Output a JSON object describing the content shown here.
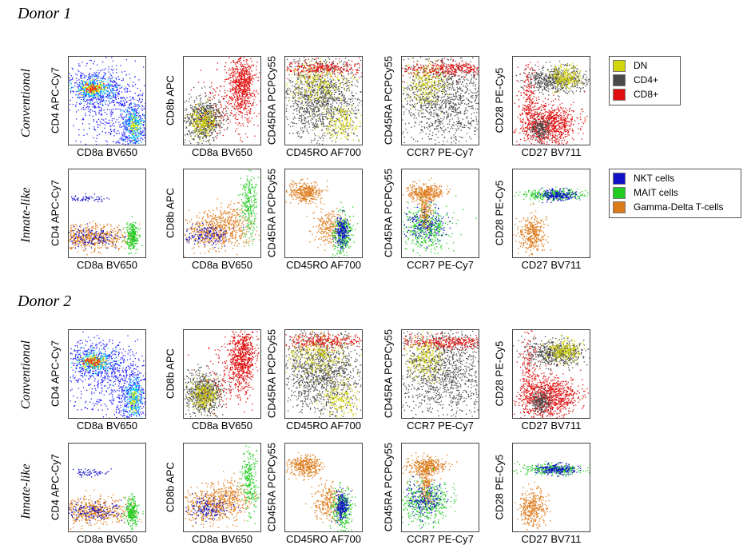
{
  "donors": [
    {
      "title": "Donor 1"
    },
    {
      "title": "Donor 2"
    }
  ],
  "row_labels": {
    "conventional": "Conventional",
    "innate": "Innate-like"
  },
  "axes": [
    {
      "x": "CD8a BV650",
      "y": "CD4 APC-Cy7"
    },
    {
      "x": "CD8a BV650",
      "y": "CD8b APC"
    },
    {
      "x": "CD45RO AF700",
      "y": "CD45RA PCPCy55"
    },
    {
      "x": "CCR7 PE-Cy7",
      "y": "CD45RA PCPCy55"
    },
    {
      "x": "CD27 BV711",
      "y": "CD28 PE-Cy5"
    }
  ],
  "legend_conventional": [
    {
      "label": "DN",
      "color": "#d4d40a"
    },
    {
      "label": "CD4+",
      "color": "#4a4a4a"
    },
    {
      "label": "CD8+",
      "color": "#e01010"
    }
  ],
  "legend_innate": [
    {
      "label": "NKT cells",
      "color": "#1010c8"
    },
    {
      "label": "MAIT cells",
      "color": "#22cc22"
    },
    {
      "label": "Gamma-Delta T-cells",
      "color": "#dd7a1a"
    }
  ],
  "colors": {
    "heat_low": "#2020ff",
    "heat_mid": "#00ccff",
    "heat_mid2": "#f0f000",
    "heat_high": "#ff2000"
  }
}
